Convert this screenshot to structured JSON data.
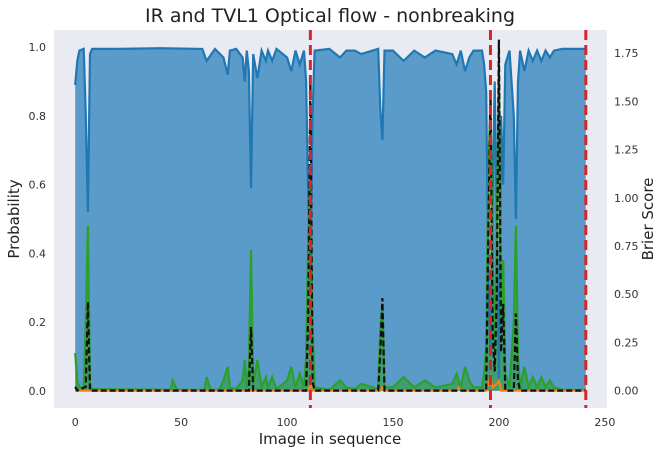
{
  "chart_data": {
    "type": "line",
    "title": "IR and TVL1 Optical flow - nonbreaking",
    "xlabel": "Image in sequence",
    "ylabel": "Probability",
    "y2label": "Brier Score",
    "xlim": [
      -10,
      251
    ],
    "ylim": [
      -0.05,
      1.05
    ],
    "y2lim": [
      -0.09,
      1.87
    ],
    "xticks": [
      "0",
      "50",
      "100",
      "150",
      "200",
      "250"
    ],
    "yticks": [
      "0.0",
      "0.2",
      "0.4",
      "0.6",
      "0.8",
      "1.0"
    ],
    "y2ticks": [
      "0.00",
      "0.25",
      "0.50",
      "0.75",
      "1.00",
      "1.25",
      "1.50",
      "1.75"
    ],
    "grid": false,
    "background": "#EAEAF2",
    "colors": {
      "probability": "#1F77B4",
      "fill": "#5A9BC9",
      "alt_class": "#2CA02C",
      "minor_class": "#FF7F0E",
      "brier": "#111111",
      "breaks": "#D62728"
    },
    "break_lines_x": [
      111,
      196,
      241
    ],
    "series": [
      {
        "role": "probability",
        "axis": "left",
        "points": [
          [
            0,
            0.89
          ],
          [
            1,
            0.96
          ],
          [
            2,
            0.99
          ],
          [
            4,
            0.995
          ],
          [
            5,
            0.8
          ],
          [
            6,
            0.52
          ],
          [
            7,
            0.98
          ],
          [
            8,
            0.995
          ],
          [
            20,
            0.995
          ],
          [
            40,
            0.997
          ],
          [
            60,
            0.995
          ],
          [
            62,
            0.96
          ],
          [
            66,
            0.995
          ],
          [
            70,
            0.97
          ],
          [
            72,
            0.92
          ],
          [
            73,
            0.99
          ],
          [
            76,
            0.995
          ],
          [
            79,
            0.97
          ],
          [
            80,
            0.9
          ],
          [
            81,
            0.99
          ],
          [
            82,
            0.93
          ],
          [
            83,
            0.59
          ],
          [
            84,
            0.98
          ],
          [
            86,
            0.91
          ],
          [
            88,
            0.99
          ],
          [
            90,
            0.96
          ],
          [
            91,
            0.99
          ],
          [
            93,
            0.96
          ],
          [
            95,
            0.995
          ],
          [
            100,
            0.97
          ],
          [
            102,
            0.93
          ],
          [
            104,
            0.99
          ],
          [
            106,
            0.95
          ],
          [
            108,
            0.99
          ],
          [
            109,
            0.9
          ],
          [
            110,
            0.55
          ],
          [
            111,
            0.35
          ],
          [
            112,
            0.8
          ],
          [
            113,
            0.99
          ],
          [
            120,
            0.995
          ],
          [
            125,
            0.97
          ],
          [
            128,
            0.99
          ],
          [
            132,
            0.99
          ],
          [
            135,
            0.98
          ],
          [
            143,
            0.995
          ],
          [
            144,
            0.82
          ],
          [
            145,
            0.73
          ],
          [
            146,
            0.99
          ],
          [
            150,
            0.99
          ],
          [
            155,
            0.96
          ],
          [
            160,
            0.99
          ],
          [
            165,
            0.97
          ],
          [
            170,
            0.99
          ],
          [
            178,
            0.98
          ],
          [
            180,
            0.95
          ],
          [
            182,
            0.99
          ],
          [
            184,
            0.93
          ],
          [
            186,
            0.97
          ],
          [
            188,
            0.99
          ],
          [
            190,
            0.99
          ],
          [
            192,
            0.99
          ],
          [
            193,
            0.95
          ],
          [
            194,
            0.87
          ],
          [
            195,
            0.35
          ],
          [
            196,
            0.1
          ],
          [
            197,
            0.55
          ],
          [
            198,
            0.9
          ],
          [
            199,
            0.5
          ],
          [
            200,
            0.02
          ],
          [
            201,
            0.8
          ],
          [
            202,
            0.6
          ],
          [
            203,
            0.95
          ],
          [
            205,
            0.99
          ],
          [
            207,
            0.8
          ],
          [
            208,
            0.5
          ],
          [
            209,
            0.9
          ],
          [
            210,
            0.99
          ],
          [
            212,
            0.93
          ],
          [
            214,
            0.99
          ],
          [
            216,
            0.96
          ],
          [
            218,
            0.99
          ],
          [
            220,
            0.96
          ],
          [
            222,
            0.99
          ],
          [
            224,
            0.97
          ],
          [
            226,
            0.99
          ],
          [
            230,
            0.995
          ],
          [
            235,
            0.995
          ],
          [
            241,
            0.995
          ]
        ]
      },
      {
        "role": "alt_class",
        "axis": "left",
        "points": [
          [
            0,
            0.11
          ],
          [
            1,
            0.03
          ],
          [
            2,
            0.01
          ],
          [
            4,
            0.01
          ],
          [
            5,
            0.2
          ],
          [
            6,
            0.48
          ],
          [
            7,
            0.02
          ],
          [
            8,
            0.005
          ],
          [
            45,
            0.003
          ],
          [
            46,
            0.03
          ],
          [
            48,
            0.003
          ],
          [
            61,
            0.003
          ],
          [
            62,
            0.04
          ],
          [
            64,
            0.003
          ],
          [
            68,
            0.003
          ],
          [
            70,
            0.03
          ],
          [
            72,
            0.07
          ],
          [
            73,
            0.01
          ],
          [
            76,
            0.005
          ],
          [
            79,
            0.03
          ],
          [
            80,
            0.09
          ],
          [
            81,
            0.01
          ],
          [
            82,
            0.07
          ],
          [
            83,
            0.41
          ],
          [
            84,
            0.02
          ],
          [
            86,
            0.09
          ],
          [
            88,
            0.01
          ],
          [
            90,
            0.04
          ],
          [
            91,
            0.01
          ],
          [
            93,
            0.04
          ],
          [
            95,
            0.005
          ],
          [
            100,
            0.03
          ],
          [
            102,
            0.07
          ],
          [
            104,
            0.01
          ],
          [
            106,
            0.05
          ],
          [
            108,
            0.01
          ],
          [
            109,
            0.1
          ],
          [
            110,
            0.45
          ],
          [
            111,
            0.62
          ],
          [
            112,
            0.2
          ],
          [
            113,
            0.01
          ],
          [
            120,
            0.003
          ],
          [
            125,
            0.03
          ],
          [
            128,
            0.01
          ],
          [
            132,
            0.005
          ],
          [
            135,
            0.02
          ],
          [
            143,
            0.005
          ],
          [
            144,
            0.18
          ],
          [
            145,
            0.25
          ],
          [
            146,
            0.01
          ],
          [
            150,
            0.01
          ],
          [
            155,
            0.04
          ],
          [
            160,
            0.01
          ],
          [
            165,
            0.03
          ],
          [
            170,
            0.01
          ],
          [
            178,
            0.02
          ],
          [
            180,
            0.05
          ],
          [
            182,
            0.01
          ],
          [
            184,
            0.07
          ],
          [
            186,
            0.03
          ],
          [
            188,
            0.01
          ],
          [
            190,
            0.01
          ],
          [
            192,
            0.01
          ],
          [
            193,
            0.05
          ],
          [
            194,
            0.13
          ],
          [
            195,
            0.62
          ],
          [
            196,
            0.85
          ],
          [
            197,
            0.44
          ],
          [
            198,
            0.1
          ],
          [
            199,
            0.48
          ],
          [
            200,
            0.95
          ],
          [
            201,
            0.2
          ],
          [
            202,
            0.38
          ],
          [
            203,
            0.05
          ],
          [
            205,
            0.01
          ],
          [
            207,
            0.2
          ],
          [
            208,
            0.48
          ],
          [
            209,
            0.1
          ],
          [
            210,
            0.01
          ],
          [
            212,
            0.07
          ],
          [
            214,
            0.01
          ],
          [
            216,
            0.04
          ],
          [
            218,
            0.01
          ],
          [
            220,
            0.04
          ],
          [
            222,
            0.01
          ],
          [
            224,
            0.03
          ],
          [
            226,
            0.01
          ],
          [
            230,
            0.003
          ],
          [
            241,
            0.003
          ]
        ]
      },
      {
        "role": "minor_class",
        "axis": "left",
        "points": [
          [
            0,
            0.0
          ],
          [
            110,
            0.0
          ],
          [
            111,
            0.02
          ],
          [
            112,
            0.0
          ],
          [
            144,
            0.0
          ],
          [
            145,
            0.01
          ],
          [
            146,
            0.0
          ],
          [
            180,
            0.0
          ],
          [
            181,
            0.01
          ],
          [
            182,
            0.0
          ],
          [
            194,
            0.0
          ],
          [
            195,
            0.02
          ],
          [
            196,
            0.04
          ],
          [
            197,
            0.01
          ],
          [
            199,
            0.02
          ],
          [
            200,
            0.03
          ],
          [
            201,
            0.0
          ],
          [
            241,
            0.0
          ]
        ]
      },
      {
        "role": "brier",
        "axis": "right",
        "points": [
          [
            0,
            0.02
          ],
          [
            1,
            0.0
          ],
          [
            5,
            0.02
          ],
          [
            6,
            0.46
          ],
          [
            7,
            0.0
          ],
          [
            82,
            0.0
          ],
          [
            83,
            0.33
          ],
          [
            84,
            0.0
          ],
          [
            109,
            0.0
          ],
          [
            110,
            0.4
          ],
          [
            111,
            1.62
          ],
          [
            112,
            0.05
          ],
          [
            113,
            0.0
          ],
          [
            143,
            0.0
          ],
          [
            144,
            0.2
          ],
          [
            145,
            0.48
          ],
          [
            146,
            0.0
          ],
          [
            194,
            0.0
          ],
          [
            195,
            0.82
          ],
          [
            196,
            1.55
          ],
          [
            197,
            0.3
          ],
          [
            198,
            0.1
          ],
          [
            199,
            0.5
          ],
          [
            200,
            1.82
          ],
          [
            201,
            0.2
          ],
          [
            202,
            0.45
          ],
          [
            203,
            0.0
          ],
          [
            207,
            0.0
          ],
          [
            208,
            0.4
          ],
          [
            209,
            0.05
          ],
          [
            210,
            0.0
          ],
          [
            241,
            0.0
          ]
        ]
      }
    ]
  }
}
